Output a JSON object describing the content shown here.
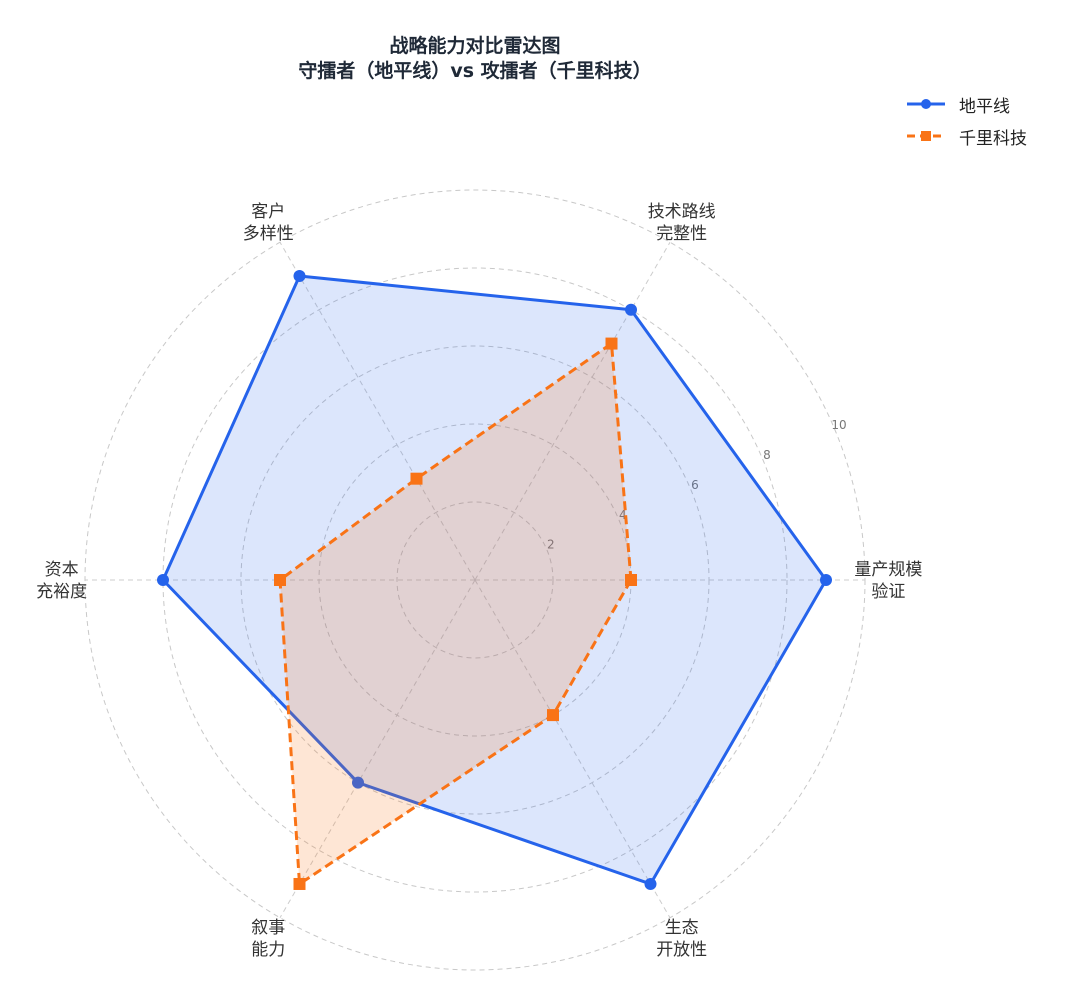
{
  "chart_data": {
    "type": "radar",
    "title": "战略能力对比雷达图",
    "subtitle": "守擂者（地平线）vs 攻擂者（千里科技）",
    "categories": [
      "量产规模\n验证",
      "技术路线\n完整性",
      "客户\n多样性",
      "资本\n充裕度",
      "叙事\n能力",
      "生态\n开放性"
    ],
    "rlim": [
      0,
      10
    ],
    "rticks": [
      2,
      4,
      6,
      8,
      10
    ],
    "grid": true,
    "legend_position": "top-right",
    "series": [
      {
        "name": "地平线",
        "values": [
          9,
          8,
          9,
          8,
          6,
          9
        ],
        "color": "#2563eb",
        "marker": "circle",
        "line": "solid"
      },
      {
        "name": "千里科技",
        "values": [
          4,
          7,
          3,
          5,
          9,
          4
        ],
        "color": "#f97316",
        "marker": "square",
        "line": "dashed"
      }
    ]
  }
}
